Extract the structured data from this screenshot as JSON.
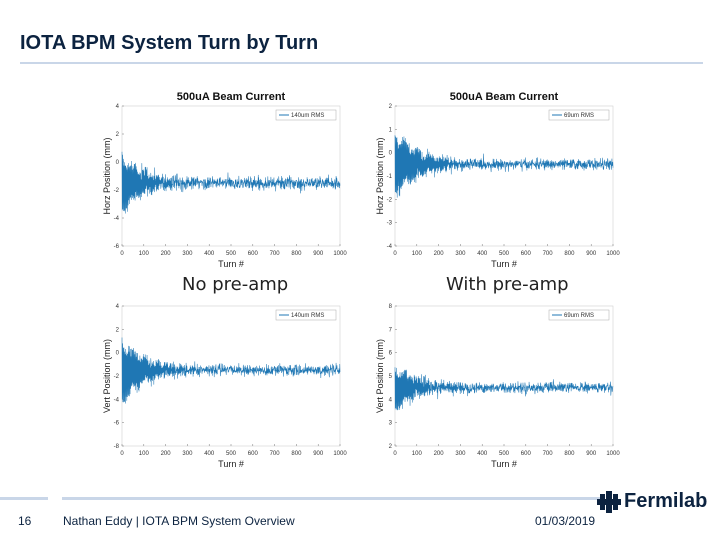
{
  "slide": {
    "title": "IOTA BPM System Turn by Turn",
    "captions": {
      "left": "No pre-amp",
      "right": "With pre-amp"
    }
  },
  "footer": {
    "page_number": "16",
    "author": "Nathan Eddy | IOTA BPM System Overview",
    "date": "01/03/2019",
    "logo_text": "Fermilab"
  },
  "colors": {
    "accent": "#0c2340",
    "rule": "#c9d6e8",
    "trace": "#1f77b4"
  },
  "chart_data": [
    {
      "type": "line",
      "title": "500uA Beam Current",
      "xlabel": "Turn #",
      "ylabel": "Horz Position (mm)",
      "xlim": [
        0,
        1000
      ],
      "ylim": [
        -6,
        4
      ],
      "xticks": [
        0,
        100,
        200,
        300,
        400,
        500,
        600,
        700,
        800,
        900,
        1000
      ],
      "yticks": [
        -6,
        -4,
        -2,
        0,
        2,
        4
      ],
      "series": [
        {
          "name": "140um RMS",
          "baseline": -1.5,
          "initial_amplitude": 2.2,
          "decay_turns": 110,
          "steady_rms": 0.14
        }
      ]
    },
    {
      "type": "line",
      "title": "500uA Beam Current",
      "xlabel": "Turn #",
      "ylabel": "Horz Position (mm)",
      "xlim": [
        0,
        1000
      ],
      "ylim": [
        -4,
        2
      ],
      "xticks": [
        0,
        100,
        200,
        300,
        400,
        500,
        600,
        700,
        800,
        900,
        1000
      ],
      "yticks": [
        -4,
        -3,
        -2,
        -1,
        0,
        1,
        2
      ],
      "series": [
        {
          "name": "69um RMS",
          "baseline": -0.5,
          "initial_amplitude": 1.5,
          "decay_turns": 120,
          "steady_rms": 0.069
        }
      ]
    },
    {
      "type": "line",
      "title": "",
      "xlabel": "Turn #",
      "ylabel": "Vert Position (mm)",
      "xlim": [
        0,
        1000
      ],
      "ylim": [
        -8,
        4
      ],
      "xticks": [
        0,
        100,
        200,
        300,
        400,
        500,
        600,
        700,
        800,
        900,
        1000
      ],
      "yticks": [
        -8,
        -6,
        -4,
        -2,
        0,
        2,
        4
      ],
      "series": [
        {
          "name": "140um RMS",
          "baseline": -1.5,
          "initial_amplitude": 3.0,
          "decay_turns": 110,
          "steady_rms": 0.14
        }
      ]
    },
    {
      "type": "line",
      "title": "",
      "xlabel": "Turn #",
      "ylabel": "Vert Position (mm)",
      "xlim": [
        0,
        1000
      ],
      "ylim": [
        2,
        8
      ],
      "xticks": [
        0,
        100,
        200,
        300,
        400,
        500,
        600,
        700,
        800,
        900,
        1000
      ],
      "yticks": [
        2,
        3,
        4,
        5,
        6,
        7,
        8
      ],
      "series": [
        {
          "name": "69um RMS",
          "baseline": 4.5,
          "initial_amplitude": 1.0,
          "decay_turns": 120,
          "steady_rms": 0.069
        }
      ]
    }
  ]
}
